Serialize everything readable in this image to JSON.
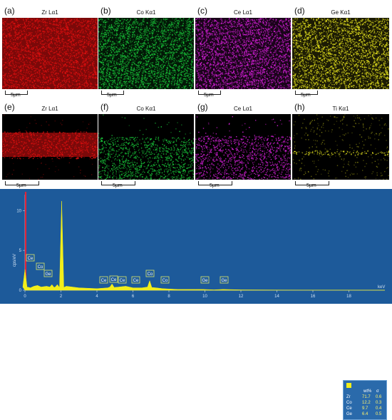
{
  "panels_top": [
    {
      "label": "(a)",
      "title": "Zr Lα1",
      "color": "#e01010",
      "scale": "5μm"
    },
    {
      "label": "(b)",
      "title": "Co Kα1",
      "color": "#19c83a",
      "scale": "5μm"
    },
    {
      "label": "(c)",
      "title": "Ce Lα1",
      "color": "#d21fd6",
      "scale": "5μm"
    },
    {
      "label": "(d)",
      "title": "Ge Kα1",
      "color": "#e4e21e",
      "scale": "5μm"
    }
  ],
  "panels_bottom": [
    {
      "label": "(e)",
      "title": "Zr Lα1",
      "color": "#e01010",
      "scale": "5μm"
    },
    {
      "label": "(f)",
      "title": "Co Kα1",
      "color": "#19c83a",
      "scale": "5μm"
    },
    {
      "label": "(g)",
      "title": "Ce Lα1",
      "color": "#d21fd6",
      "scale": "5μm"
    },
    {
      "label": "(h)",
      "title": "Ti Kα1",
      "color": "#e4e21e",
      "scale": "5μm"
    }
  ],
  "spectrum": {
    "panel_label": "(i)",
    "ylabel": "cps/eV",
    "xlabel": "keV",
    "x_ticks": [
      "0",
      "2",
      "4",
      "6",
      "8",
      "10",
      "12",
      "14",
      "16",
      "18"
    ],
    "y_ticks": [
      "0",
      "5",
      "10"
    ],
    "background": "#1d5a9a",
    "fill_color": "#f2ee1a",
    "peak_labels": [
      "Ce",
      "Co",
      "Ge",
      "Ce",
      "Ce",
      "Ce",
      "Ce",
      "Co",
      "Co",
      "Ge",
      "Ge"
    ]
  },
  "legend": {
    "headers": [
      "wt%",
      "σ"
    ],
    "rows": [
      {
        "el": "Zr",
        "wt": "71.7",
        "sigma": "0.6"
      },
      {
        "el": "Co",
        "wt": "12.2",
        "sigma": "0.3"
      },
      {
        "el": "Ce",
        "wt": "9.7",
        "sigma": "0.4"
      },
      {
        "el": "Ge",
        "wt": "6.4",
        "sigma": "0.5"
      }
    ]
  },
  "chart_data": {
    "type": "area",
    "xlabel": "keV",
    "ylabel": "cps/eV",
    "xlim": [
      0,
      20
    ],
    "ylim": [
      0,
      12
    ],
    "x": [
      0.0,
      0.15,
      0.3,
      0.5,
      0.7,
      0.9,
      1.2,
      1.5,
      1.8,
      2.04,
      2.3,
      3.0,
      4.0,
      4.6,
      4.84,
      5.2,
      5.6,
      6.0,
      6.5,
      6.93,
      7.3,
      7.65,
      8.5,
      9.5,
      9.89,
      10.5,
      11.0,
      12.0,
      14.0,
      16.0,
      18.0,
      20.0
    ],
    "y": [
      2.6,
      0.4,
      0.3,
      0.5,
      0.6,
      0.4,
      0.5,
      0.7,
      0.7,
      11.2,
      0.5,
      0.3,
      0.2,
      0.3,
      0.8,
      0.4,
      0.5,
      0.3,
      0.3,
      1.2,
      0.3,
      0.2,
      0.1,
      0.1,
      0.1,
      0.05,
      0.1,
      0.05,
      0.03,
      0.02,
      0.02,
      0.01
    ],
    "peak_labels": [
      {
        "text": "Ce",
        "x": 0.0
      },
      {
        "text": "Co",
        "x": 0.78
      },
      {
        "text": "Ge",
        "x": 1.19
      },
      {
        "text": "Ce",
        "x": 4.84
      },
      {
        "text": "Ce",
        "x": 5.26
      },
      {
        "text": "Ce",
        "x": 4.1
      },
      {
        "text": "Ce",
        "x": 6.05
      },
      {
        "text": "Co",
        "x": 6.93
      },
      {
        "text": "Co",
        "x": 7.65
      },
      {
        "text": "Ge",
        "x": 9.89
      },
      {
        "text": "Ge",
        "x": 11.0
      }
    ]
  }
}
